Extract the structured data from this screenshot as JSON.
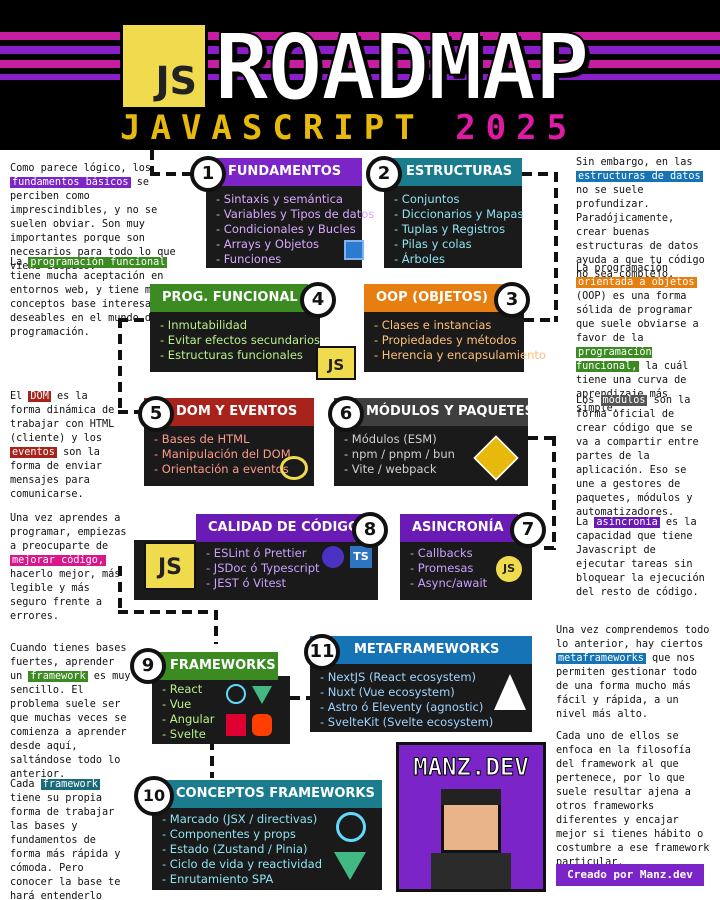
{
  "header": {
    "logo_text": "JS",
    "title": "ROADMAP",
    "subtitle_main": "JAVASCRIPT",
    "subtitle_year": "2025"
  },
  "notes": {
    "n1": {
      "pre": "Como parece lógico, los",
      "hl": "fundamentos básicos",
      "post": "se perciben como imprescindibles, y no se suelen obviar. Son muy importantes porque son necesarios para todo lo que viene después."
    },
    "n2": {
      "pre": "La",
      "hl": "programación funcional",
      "post": "tiene mucha aceptación en entornos web, y tiene muchos conceptos base interesantes y deseables en el mundo de la programación."
    },
    "n3": {
      "pre": "El",
      "hl": "DOM",
      "mid": "es la forma dinámica de trabajar con HTML (cliente) y los",
      "hl2": "eventos",
      "post": "son la forma de enviar mensajes para comunicarse."
    },
    "n4": {
      "pre": "Una vez aprendes a programar, empiezas a preocuparte de",
      "hl": "mejorar código,",
      "post": "hacerlo mejor, más legible y más seguro frente a errores."
    },
    "n5": {
      "pre": "Cuando tienes bases fuertes, aprender un",
      "hl": "framework",
      "post": "es muy sencillo. El problema suele ser que muchas veces se comienza a aprender desde aquí, saltándose todo lo anterior."
    },
    "n6": {
      "pre": "Cada",
      "hl": "framework",
      "post": "tiene su propia forma de trabajar las bases y fundamentos de forma más rápida y cómoda. Pero conocer la base te hará entenderlo todo más rápido."
    },
    "n7": {
      "pre": "Sin embargo, en las",
      "hl": "estructuras de datos",
      "post": "no se suele profundizar. Paradójicamente, crear buenas estructuras de datos ayuda a que tu código no sea complejo."
    },
    "n8": {
      "pre": "La programación",
      "hl": "orientada a objetos",
      "mid": "(OOP) es una forma sólida de programar que suele obviarse a favor de la",
      "hl2": "programación funcional,",
      "post": "la cuál tiene una curva de aprendizaje más simple."
    },
    "n9": {
      "pre": "Los",
      "hl": "módulos",
      "post": "son la forma oficial de crear código que se va a compartir entre partes de la aplicación. Eso se une a gestores de paquetes, módulos y automatizadores."
    },
    "n10": {
      "pre": "La",
      "hl": "asincronía",
      "post": "es la capacidad que tiene Javascript de ejecutar tareas sin bloquear la ejecución del resto de código."
    },
    "n11": {
      "pre": "Una vez comprendemos todo lo anterior, hay ciertos",
      "hl": "metaframeworks",
      "post": "que nos permiten gestionar todo de una forma mucho más fácil y rápida, a un nivel más alto."
    },
    "n12": {
      "text": "Cada uno de ellos se enfoca en la filosofía del framework al que pertenece, por lo que suele resultar ajena a otros frameworks diferentes y encajar mejor si tienes hábito o costumbre a ese framework particular."
    }
  },
  "topics": {
    "t1": {
      "num": "1",
      "title": "FUNDAMENTOS",
      "items": [
        "- Sintaxis y semántica",
        "- Variables y Tipos de datos",
        "- Condicionales y Bucles",
        "- Arrays y Objetos",
        "- Funciones"
      ]
    },
    "t2": {
      "num": "2",
      "title": "ESTRUCTURAS",
      "items": [
        "- Conjuntos",
        "- Diccionarios y Mapas",
        "- Tuplas y Registros",
        "- Pilas y colas",
        "- Árboles"
      ]
    },
    "t3": {
      "num": "3",
      "title": "OOP (OBJETOS)",
      "items": [
        "- Clases e instancias",
        "- Propiedades y métodos",
        "- Herencia y encapsulamiento"
      ]
    },
    "t4": {
      "num": "4",
      "title": "PROG. FUNCIONAL",
      "items": [
        "- Inmutabilidad",
        "- Evitar efectos secundarios",
        "- Estructuras funcionales"
      ]
    },
    "t5": {
      "num": "5",
      "title": "DOM Y EVENTOS",
      "items": [
        "- Bases de HTML",
        "- Manipulación del DOM",
        "- Orientación a eventos"
      ]
    },
    "t6": {
      "num": "6",
      "title": "MÓDULOS Y PAQUETES",
      "items": [
        "- Módulos (ESM)",
        "- npm / pnpm / bun",
        "- Vite / webpack"
      ]
    },
    "t7": {
      "num": "7",
      "title": "ASINCRONÍA",
      "items": [
        "- Callbacks",
        "- Promesas",
        "- Async/await"
      ]
    },
    "t8": {
      "num": "8",
      "title": "CALIDAD DE CÓDIGO",
      "items": [
        "- ESLint ó Prettier",
        "- JSDoc ó Typescript",
        "- JEST ó Vitest"
      ]
    },
    "t9": {
      "num": "9",
      "title": "FRAMEWORKS",
      "items": [
        "- React",
        "- Vue",
        "- Angular",
        "- Svelte"
      ]
    },
    "t10": {
      "num": "10",
      "title": "CONCEPTOS FRAMEWORKS",
      "items": [
        "- Marcado (JSX / directivas)",
        "- Componentes y props",
        "- Estado (Zustand / Pinia)",
        "- Ciclo de vida y reactividad",
        "- Enrutamiento SPA"
      ]
    },
    "t11": {
      "num": "11",
      "title": "METAFRAMEWORKS",
      "items": [
        "- NextJS (React ecosystem)",
        "- Nuxt (Vue ecosystem)",
        "- Astro ó Eleventy (agnostic)",
        "- SvelteKit (Svelte ecosystem)"
      ]
    }
  },
  "icons": {
    "js": "JS",
    "ts": "TS"
  },
  "brand": {
    "title": "MANZ.DEV",
    "credit": "Creado por Manz.dev"
  }
}
